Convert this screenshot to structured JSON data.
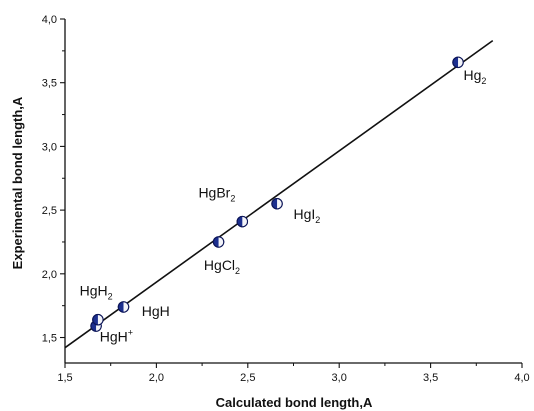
{
  "chart_data": {
    "type": "scatter",
    "title": "",
    "xlabel": "Calculated bond length,A",
    "ylabel": "Experimental bond length,A",
    "xlim": [
      1.5,
      4.0
    ],
    "ylim": [
      1.3,
      4.0
    ],
    "x_ticks": [
      "1,5",
      "2,0",
      "2,5",
      "3,0",
      "3,5",
      "4,0"
    ],
    "y_ticks": [
      "1,5",
      "2,0",
      "2,5",
      "3,0",
      "3,5",
      "4,0"
    ],
    "grid": false,
    "legend": "none",
    "points": [
      {
        "x": 1.67,
        "y": 1.59
      },
      {
        "x": 1.68,
        "y": 1.64
      },
      {
        "x": 1.82,
        "y": 1.74
      },
      {
        "x": 2.34,
        "y": 2.25
      },
      {
        "x": 2.47,
        "y": 2.41
      },
      {
        "x": 2.66,
        "y": 2.55
      },
      {
        "x": 3.65,
        "y": 3.66
      }
    ],
    "fit_line": {
      "x": [
        1.5,
        3.84
      ],
      "y": [
        1.42,
        3.83
      ]
    },
    "annotations": [
      {
        "base": "HgH",
        "sub": "2",
        "sup": "",
        "x": 1.58,
        "y": 1.83
      },
      {
        "base": "HgH",
        "sub": "",
        "sup": "+",
        "x": 1.69,
        "y": 1.47
      },
      {
        "base": "HgH",
        "sub": "",
        "sup": "",
        "x": 1.92,
        "y": 1.67
      },
      {
        "base": "HgCl",
        "sub": "2",
        "sup": "",
        "x": 2.26,
        "y": 2.03
      },
      {
        "base": "HgBr",
        "sub": "2",
        "sup": "",
        "x": 2.23,
        "y": 2.6
      },
      {
        "base": "HgI",
        "sub": "2",
        "sup": "",
        "x": 2.75,
        "y": 2.43
      },
      {
        "base": "Hg",
        "sub": "2",
        "sup": "",
        "x": 3.68,
        "y": 3.52
      }
    ],
    "colors": {
      "marker_fill": "#1c2f8f",
      "marker_edge": "#0d1658",
      "line": "#111111"
    }
  }
}
